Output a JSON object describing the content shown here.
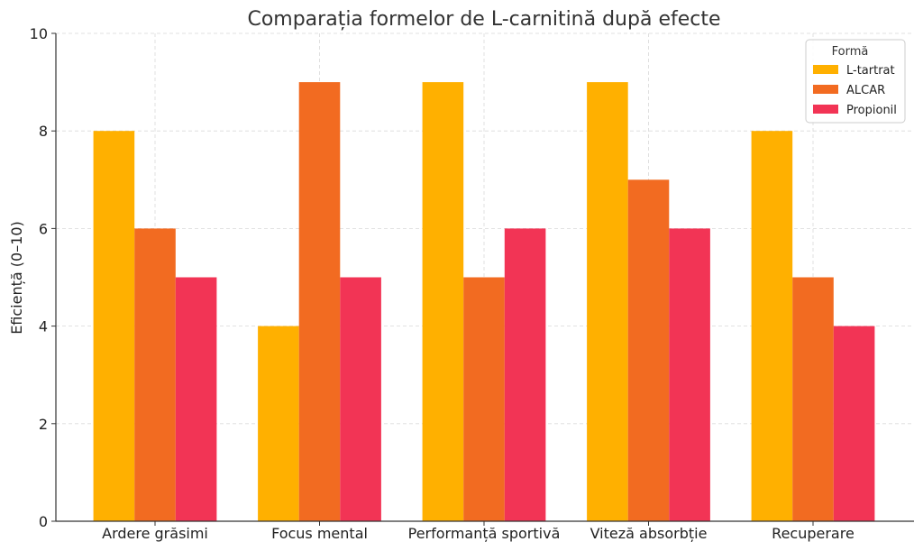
{
  "chart_data": {
    "type": "bar",
    "title": "Comparația formelor de L-carnitină după efecte",
    "xlabel": "",
    "ylabel": "Eficiență (0–10)",
    "categories": [
      "Ardere grăsimi",
      "Focus mental",
      "Performanță sportivă",
      "Viteză absorbție",
      "Recuperare"
    ],
    "series": [
      {
        "name": "L-tartrat",
        "values": [
          8,
          4,
          9,
          9,
          8
        ],
        "color": "#FFB000"
      },
      {
        "name": "ALCAR",
        "values": [
          6,
          9,
          5,
          7,
          5
        ],
        "color": "#F26B21"
      },
      {
        "name": "Propionil",
        "values": [
          5,
          5,
          6,
          6,
          4
        ],
        "color": "#F23455"
      }
    ],
    "ylim": [
      0,
      10
    ],
    "yticks": [
      0,
      2,
      4,
      6,
      8,
      10
    ],
    "grid": true,
    "legend": {
      "title": "Formă",
      "position": "top-right"
    }
  }
}
